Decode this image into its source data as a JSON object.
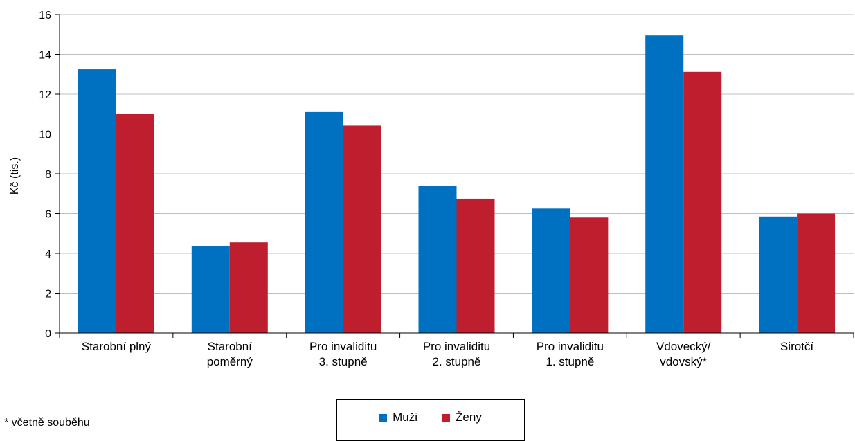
{
  "chart_data": {
    "type": "bar",
    "ylabel": "Kč (tis.)",
    "ylim": [
      0,
      16
    ],
    "yticks": [
      0,
      2,
      4,
      6,
      8,
      10,
      12,
      14,
      16
    ],
    "grid": true,
    "legend_position": "bottom",
    "categories": [
      [
        "Starobní plný"
      ],
      [
        "Starobní",
        "poměrný"
      ],
      [
        "Pro invaliditu",
        "3. stupně"
      ],
      [
        "Pro invaliditu",
        "2. stupně"
      ],
      [
        "Pro invaliditu",
        "1. stupně"
      ],
      [
        "Vdovecký/",
        "vdovský*"
      ],
      [
        "Sirotčí"
      ]
    ],
    "series": [
      {
        "name": "Muži",
        "color": "#0070c0",
        "values": [
          13.25,
          4.38,
          11.1,
          7.38,
          6.25,
          14.95,
          5.85
        ]
      },
      {
        "name": "Ženy",
        "color": "#be1e2d",
        "values": [
          11.0,
          4.55,
          10.42,
          6.75,
          5.8,
          13.12,
          6.0
        ]
      }
    ]
  },
  "footnote": "* včetně souběhu"
}
